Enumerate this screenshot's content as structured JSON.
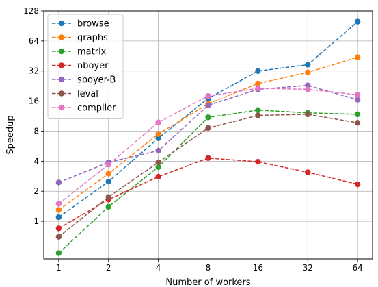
{
  "chart_data": {
    "type": "line",
    "xlabel": "Number of workers",
    "ylabel": "Speedup",
    "x": [
      1,
      2,
      4,
      8,
      16,
      32,
      64
    ],
    "x_tick_labels": [
      "1",
      "2",
      "4",
      "8",
      "16",
      "32",
      "64"
    ],
    "y_ticks": [
      1,
      2,
      4,
      8,
      16,
      32,
      64,
      128
    ],
    "y_tick_labels": [
      "1",
      "2",
      "4",
      "8",
      "16",
      "32",
      "64",
      "128"
    ],
    "ylim": [
      0.42,
      128
    ],
    "xscale": "log2",
    "yscale": "log2",
    "grid": true,
    "legend_position": "top-left",
    "series": [
      {
        "name": "browse",
        "color": "#1f77b4",
        "values": [
          1.1,
          2.5,
          6.8,
          17.0,
          32.0,
          37.0,
          100.0
        ]
      },
      {
        "name": "graphs",
        "color": "#ff7f0e",
        "values": [
          1.3,
          3.0,
          7.5,
          15.0,
          24.0,
          31.0,
          44.0
        ]
      },
      {
        "name": "matrix",
        "color": "#2ca02c",
        "values": [
          0.48,
          1.4,
          3.5,
          11.0,
          13.0,
          12.2,
          11.8
        ]
      },
      {
        "name": "nboyer",
        "color": "#d62728",
        "values": [
          0.85,
          1.65,
          2.8,
          4.3,
          3.95,
          3.1,
          2.35
        ]
      },
      {
        "name": "sboyer-B",
        "color": "#9467bd",
        "values": [
          2.45,
          3.9,
          5.1,
          14.5,
          21.0,
          23.0,
          16.5
        ]
      },
      {
        "name": "leval",
        "color": "#8c564b",
        "values": [
          0.7,
          1.75,
          3.9,
          8.6,
          11.5,
          11.8,
          9.7
        ]
      },
      {
        "name": "compiler",
        "color": "#e377c2",
        "values": [
          1.5,
          3.7,
          9.8,
          18.0,
          21.5,
          21.0,
          18.5
        ]
      }
    ]
  }
}
